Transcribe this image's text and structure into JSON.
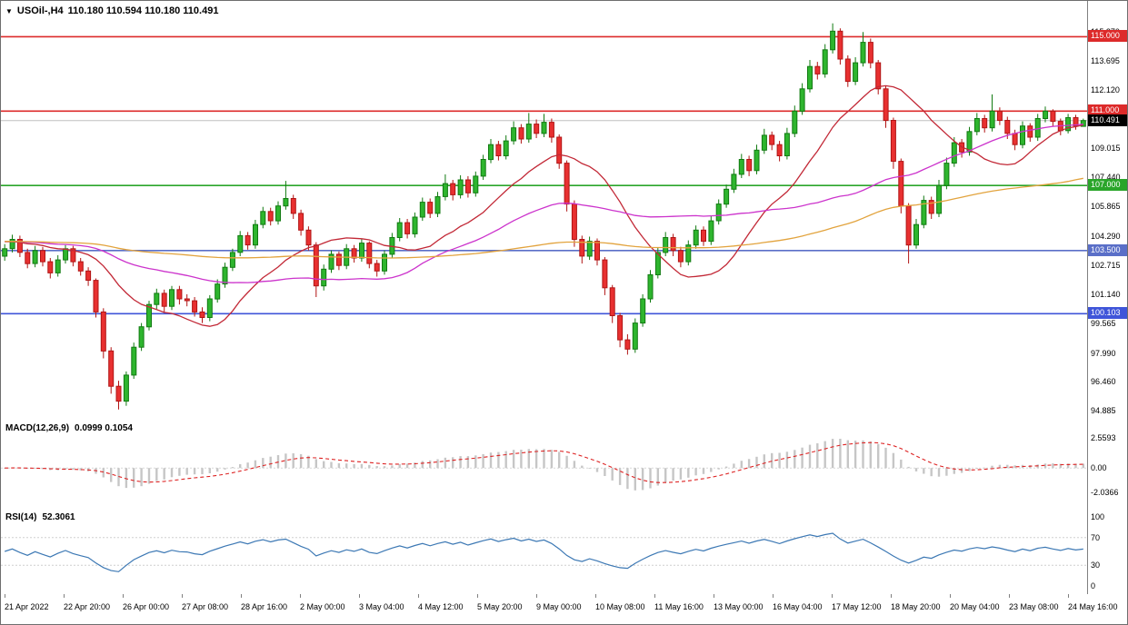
{
  "title": {
    "dropdown_icon": "▼",
    "symbol_period": "USOil-,H4",
    "ohlc": "110.180 110.594 110.180 110.491"
  },
  "colors": {
    "background": "#ffffff",
    "candle_up": "#2eb52e",
    "candle_up_border": "#117a11",
    "candle_down": "#e83030",
    "candle_down_border": "#b01414",
    "bid_line": "#c0c0c0",
    "bid_label_bg": "#000000",
    "separator": "#7f7f7f"
  },
  "main_chart": {
    "scale": {
      "pmin": 94.55,
      "pmax": 115.95
    },
    "price_axis_ticks": [
      "115.270",
      "113.695",
      "112.120",
      "109.015",
      "107.440",
      "105.865",
      "104.290",
      "102.715",
      "101.140",
      "99.565",
      "97.990",
      "96.460",
      "94.885"
    ],
    "levels": [
      {
        "value": 115.0,
        "label": "115.000",
        "color": "#dd2a2a"
      },
      {
        "value": 111.0,
        "label": "111.000",
        "color": "#dd2a2a"
      },
      {
        "value": 107.0,
        "label": "107.000",
        "color": "#2aa52a"
      },
      {
        "value": 103.5,
        "label": "103.500",
        "color": "#5a6fc8"
      },
      {
        "value": 100.103,
        "label": "100.103",
        "color": "#3f55d9"
      }
    ],
    "bid": {
      "value": 110.491,
      "label": "110.491"
    }
  },
  "chart_data": {
    "type": "candlestick",
    "symbol": "USOil-",
    "timeframe": "H4",
    "history_seed": 104,
    "time_axis_labels": [
      "21 Apr 2022",
      "22 Apr 20:00",
      "26 Apr 00:00",
      "27 Apr 08:00",
      "28 Apr 16:00",
      "2 May 00:00",
      "3 May 04:00",
      "4 May 12:00",
      "5 May 20:00",
      "9 May 00:00",
      "10 May 08:00",
      "11 May 16:00",
      "13 May 00:00",
      "16 May 04:00",
      "17 May 12:00",
      "18 May 20:00",
      "20 May 04:00",
      "23 May 08:00",
      "24 May 16:00"
    ],
    "candles_ohlc": [
      [
        103.2,
        103.85,
        102.95,
        103.6
      ],
      [
        103.6,
        104.35,
        103.4,
        104.1
      ],
      [
        104.1,
        104.3,
        103.15,
        103.4
      ],
      [
        103.4,
        103.6,
        102.55,
        102.8
      ],
      [
        102.8,
        103.75,
        102.6,
        103.5
      ],
      [
        103.5,
        103.7,
        102.65,
        102.9
      ],
      [
        102.9,
        103.1,
        102.0,
        102.3
      ],
      [
        102.3,
        103.25,
        102.1,
        103.0
      ],
      [
        103.0,
        103.8,
        102.8,
        103.6
      ],
      [
        103.6,
        103.75,
        102.65,
        102.9
      ],
      [
        102.9,
        103.1,
        102.15,
        102.4
      ],
      [
        102.4,
        102.6,
        101.6,
        101.9
      ],
      [
        101.9,
        102.0,
        99.9,
        100.2
      ],
      [
        100.2,
        100.4,
        97.7,
        98.1
      ],
      [
        98.1,
        98.3,
        95.8,
        96.2
      ],
      [
        96.2,
        96.5,
        94.95,
        95.4
      ],
      [
        95.4,
        97.0,
        95.15,
        96.8
      ],
      [
        96.8,
        98.55,
        96.6,
        98.3
      ],
      [
        98.3,
        99.6,
        98.1,
        99.4
      ],
      [
        99.4,
        100.8,
        99.2,
        100.6
      ],
      [
        100.6,
        101.45,
        100.35,
        101.2
      ],
      [
        101.2,
        101.4,
        100.2,
        100.5
      ],
      [
        100.5,
        101.6,
        100.3,
        101.4
      ],
      [
        101.4,
        101.6,
        100.6,
        100.9
      ],
      [
        100.9,
        101.15,
        100.5,
        100.8
      ],
      [
        100.8,
        101.0,
        99.95,
        100.2
      ],
      [
        100.2,
        100.45,
        99.6,
        99.9
      ],
      [
        99.9,
        101.1,
        99.7,
        100.9
      ],
      [
        100.9,
        101.95,
        100.7,
        101.7
      ],
      [
        101.7,
        102.85,
        101.5,
        102.6
      ],
      [
        102.6,
        103.6,
        102.4,
        103.4
      ],
      [
        103.4,
        104.55,
        103.2,
        104.3
      ],
      [
        104.3,
        104.5,
        103.55,
        103.8
      ],
      [
        103.8,
        105.15,
        103.6,
        104.9
      ],
      [
        104.9,
        105.85,
        104.7,
        105.6
      ],
      [
        105.6,
        105.8,
        104.85,
        105.1
      ],
      [
        105.1,
        106.15,
        104.9,
        105.9
      ],
      [
        105.9,
        107.25,
        105.7,
        106.3
      ],
      [
        106.3,
        106.5,
        105.2,
        105.5
      ],
      [
        105.5,
        105.7,
        104.3,
        104.6
      ],
      [
        104.6,
        104.8,
        103.5,
        103.8
      ],
      [
        103.8,
        103.95,
        101.0,
        101.6
      ],
      [
        101.6,
        102.75,
        101.35,
        102.5
      ],
      [
        102.5,
        103.5,
        102.3,
        103.3
      ],
      [
        103.3,
        103.45,
        102.45,
        102.7
      ],
      [
        102.7,
        103.85,
        102.5,
        103.6
      ],
      [
        103.6,
        103.8,
        102.85,
        103.1
      ],
      [
        103.1,
        104.1,
        102.9,
        103.9
      ],
      [
        103.9,
        104.0,
        102.55,
        102.8
      ],
      [
        102.8,
        103.0,
        102.1,
        102.4
      ],
      [
        102.4,
        103.5,
        102.2,
        103.3
      ],
      [
        103.3,
        104.45,
        103.1,
        104.2
      ],
      [
        104.2,
        105.25,
        104.0,
        105.0
      ],
      [
        105.0,
        105.2,
        104.15,
        104.4
      ],
      [
        104.4,
        105.55,
        104.2,
        105.3
      ],
      [
        105.3,
        106.35,
        105.1,
        106.1
      ],
      [
        106.1,
        106.3,
        105.25,
        105.5
      ],
      [
        105.5,
        106.65,
        105.3,
        106.4
      ],
      [
        106.4,
        107.6,
        106.2,
        107.1
      ],
      [
        107.1,
        107.3,
        106.2,
        106.5
      ],
      [
        106.5,
        107.55,
        106.3,
        107.3
      ],
      [
        107.3,
        107.5,
        106.35,
        106.6
      ],
      [
        106.6,
        107.75,
        106.4,
        107.5
      ],
      [
        107.5,
        108.65,
        107.3,
        108.4
      ],
      [
        108.4,
        109.5,
        108.2,
        109.2
      ],
      [
        109.2,
        109.4,
        108.35,
        108.6
      ],
      [
        108.6,
        109.7,
        108.4,
        109.4
      ],
      [
        109.4,
        110.45,
        109.2,
        110.1
      ],
      [
        110.1,
        110.3,
        109.25,
        109.5
      ],
      [
        109.5,
        110.9,
        109.3,
        110.3
      ],
      [
        110.3,
        110.55,
        109.55,
        109.8
      ],
      [
        109.8,
        110.85,
        109.6,
        110.4
      ],
      [
        110.4,
        110.6,
        109.3,
        109.6
      ],
      [
        109.6,
        109.75,
        107.9,
        108.2
      ],
      [
        108.2,
        108.35,
        105.6,
        106.0
      ],
      [
        106.0,
        106.2,
        103.7,
        104.1
      ],
      [
        104.1,
        104.3,
        102.8,
        103.2
      ],
      [
        103.2,
        104.25,
        103.0,
        104.0
      ],
      [
        104.0,
        104.15,
        102.7,
        103.0
      ],
      [
        103.0,
        103.15,
        101.1,
        101.5
      ],
      [
        101.5,
        101.65,
        99.6,
        100.0
      ],
      [
        100.0,
        100.15,
        98.3,
        98.7
      ],
      [
        98.7,
        99.0,
        97.9,
        98.2
      ],
      [
        98.2,
        99.85,
        98.0,
        99.6
      ],
      [
        99.6,
        101.15,
        99.4,
        100.9
      ],
      [
        100.9,
        102.45,
        100.7,
        102.2
      ],
      [
        102.2,
        103.65,
        102.0,
        103.4
      ],
      [
        103.4,
        104.5,
        103.2,
        104.2
      ],
      [
        104.2,
        104.4,
        103.2,
        103.5
      ],
      [
        103.5,
        103.7,
        102.6,
        102.9
      ],
      [
        102.9,
        104.05,
        102.7,
        103.8
      ],
      [
        103.8,
        104.85,
        103.6,
        104.6
      ],
      [
        104.6,
        104.8,
        103.75,
        104.0
      ],
      [
        104.0,
        105.35,
        103.8,
        105.1
      ],
      [
        105.1,
        106.25,
        104.9,
        106.0
      ],
      [
        106.0,
        107.05,
        105.8,
        106.8
      ],
      [
        106.8,
        107.9,
        106.6,
        107.6
      ],
      [
        107.6,
        108.7,
        107.4,
        108.4
      ],
      [
        108.4,
        108.6,
        107.5,
        107.8
      ],
      [
        107.8,
        109.2,
        107.6,
        108.9
      ],
      [
        108.9,
        110.05,
        108.7,
        109.7
      ],
      [
        109.7,
        109.9,
        108.9,
        109.2
      ],
      [
        109.2,
        109.4,
        108.3,
        108.6
      ],
      [
        108.6,
        110.1,
        108.4,
        109.8
      ],
      [
        109.8,
        111.3,
        109.6,
        111.0
      ],
      [
        111.0,
        112.5,
        110.8,
        112.2
      ],
      [
        112.2,
        113.75,
        112.0,
        113.4
      ],
      [
        113.4,
        113.65,
        112.7,
        113.0
      ],
      [
        113.0,
        114.6,
        112.8,
        114.3
      ],
      [
        114.3,
        115.72,
        114.1,
        115.3
      ],
      [
        115.3,
        115.45,
        113.5,
        113.8
      ],
      [
        113.8,
        114.0,
        112.3,
        112.6
      ],
      [
        112.6,
        113.9,
        112.4,
        113.6
      ],
      [
        113.6,
        115.25,
        113.4,
        114.7
      ],
      [
        114.7,
        114.9,
        113.3,
        113.6
      ],
      [
        113.6,
        113.75,
        111.9,
        112.2
      ],
      [
        112.2,
        112.35,
        110.1,
        110.5
      ],
      [
        110.5,
        110.65,
        107.9,
        108.3
      ],
      [
        108.3,
        108.45,
        105.5,
        105.9
      ],
      [
        105.9,
        106.05,
        102.8,
        103.8
      ],
      [
        103.8,
        105.2,
        103.6,
        104.9
      ],
      [
        104.9,
        106.45,
        104.7,
        106.2
      ],
      [
        106.2,
        106.4,
        105.2,
        105.5
      ],
      [
        105.5,
        107.3,
        105.3,
        107.0
      ],
      [
        107.0,
        108.5,
        106.8,
        108.2
      ],
      [
        108.2,
        109.6,
        108.0,
        109.3
      ],
      [
        109.3,
        109.5,
        108.5,
        108.8
      ],
      [
        108.8,
        110.15,
        108.6,
        109.9
      ],
      [
        109.9,
        110.9,
        109.7,
        110.6
      ],
      [
        110.6,
        110.8,
        109.85,
        110.1
      ],
      [
        110.1,
        111.9,
        109.9,
        111.0
      ],
      [
        111.0,
        111.2,
        110.25,
        110.5
      ],
      [
        110.5,
        110.7,
        109.5,
        109.8
      ],
      [
        109.8,
        110.0,
        108.9,
        109.2
      ],
      [
        109.2,
        110.45,
        109.0,
        110.2
      ],
      [
        110.2,
        110.35,
        109.35,
        109.6
      ],
      [
        109.6,
        110.85,
        109.4,
        110.6
      ],
      [
        110.6,
        111.25,
        110.4,
        111.0
      ],
      [
        111.0,
        111.1,
        110.2,
        110.45
      ],
      [
        110.45,
        110.6,
        109.7,
        109.95
      ],
      [
        109.95,
        110.85,
        109.8,
        110.65
      ],
      [
        110.65,
        110.8,
        110.0,
        110.2
      ],
      [
        110.18,
        110.594,
        110.18,
        110.491
      ]
    ],
    "moving_averages": [
      {
        "name": "ma-fast",
        "period": 16,
        "color": "#c22836"
      },
      {
        "name": "ma-mid",
        "period": 40,
        "color": "#cc33cc"
      },
      {
        "name": "ma-slow",
        "period": 100,
        "color": "#e2a33d"
      }
    ],
    "indicators": {
      "macd": {
        "label": "MACD(12,26,9)",
        "values_text": "0.0999 0.1054",
        "fast": 12,
        "slow": 26,
        "signal": 9,
        "axis_ticks": [
          "2.5593",
          "0.00",
          "-2.0366"
        ],
        "axis_range": [
          -2.6,
          3.1
        ],
        "histogram_color": "#c6c6c6",
        "signal_color": "#dd2222"
      },
      "rsi": {
        "label": "RSI(14)",
        "value_text": "52.3061",
        "period": 14,
        "axis_ticks": [
          "100",
          "70",
          "30",
          "0"
        ],
        "levels": [
          70,
          30
        ],
        "line_color": "#3c78b4"
      }
    }
  }
}
